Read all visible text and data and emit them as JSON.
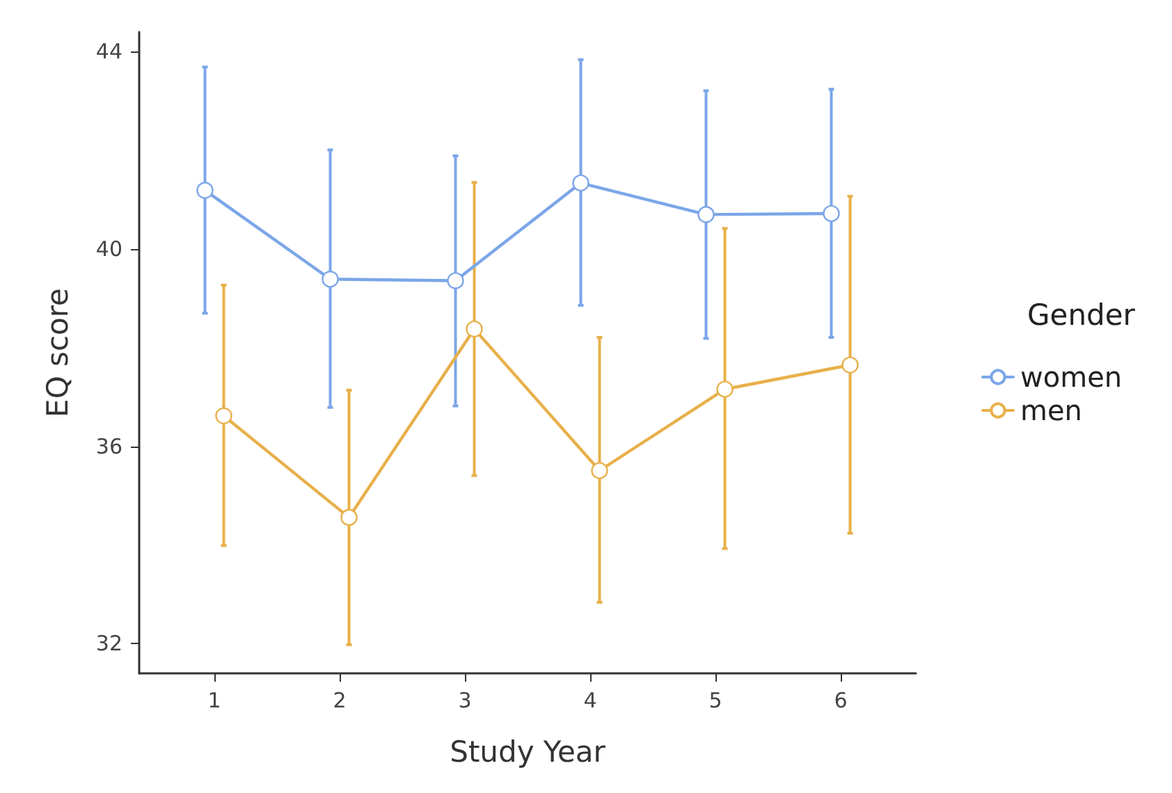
{
  "chart_data": {
    "type": "line",
    "xlabel": "Study Year",
    "ylabel": "EQ score",
    "legend_title": "Gender",
    "categories": [
      "1",
      "2",
      "3",
      "4",
      "5",
      "6"
    ],
    "series": [
      {
        "name": "women",
        "color": "#7ba6e8",
        "values": [
          41.19,
          39.39,
          39.36,
          41.34,
          40.7,
          40.72
        ],
        "errors": [
          [
            38.7,
            43.69
          ],
          [
            36.79,
            42.01
          ],
          [
            36.82,
            41.89
          ],
          [
            38.86,
            43.84
          ],
          [
            38.19,
            43.21
          ],
          [
            38.21,
            43.24
          ]
        ]
      },
      {
        "name": "men",
        "color": "#e8b04a",
        "values": [
          36.62,
          34.56,
          38.38,
          35.51,
          37.16,
          37.65
        ],
        "errors": [
          [
            33.99,
            39.27
          ],
          [
            31.98,
            37.14
          ],
          [
            35.41,
            41.35
          ],
          [
            32.84,
            38.21
          ],
          [
            33.93,
            40.42
          ],
          [
            34.24,
            41.07
          ]
        ]
      }
    ],
    "ylim": [
      31.4,
      44.4
    ],
    "yticks": [
      32,
      36,
      40,
      44
    ],
    "grid": false,
    "legend": "right",
    "marker": "circle",
    "line_style": "solid"
  }
}
